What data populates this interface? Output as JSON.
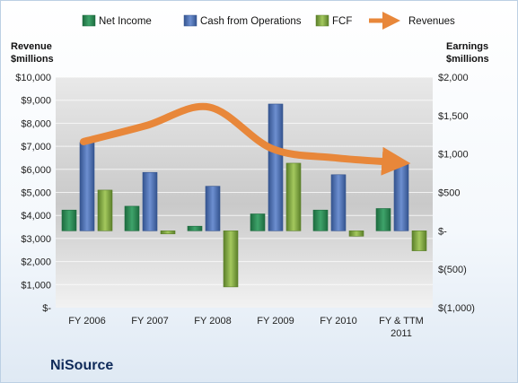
{
  "company": "NiSource",
  "chart_data": {
    "type": "bar",
    "categories": [
      "FY 2006",
      "FY 2007",
      "FY 2008",
      "FY 2009",
      "FY 2010",
      "FY & TTM 2011"
    ],
    "left_axis": {
      "title_line1": "Revenue",
      "title_line2": "$millions",
      "ylim": [
        0,
        10000
      ],
      "ticks": [
        0,
        1000,
        2000,
        3000,
        4000,
        5000,
        6000,
        7000,
        8000,
        9000,
        10000
      ],
      "tick_labels": [
        "$-",
        "$1,000",
        "$2,000",
        "$3,000",
        "$4,000",
        "$5,000",
        "$6,000",
        "$7,000",
        "$8,000",
        "$9,000",
        "$10,000"
      ]
    },
    "right_axis": {
      "title_line1": "Earnings",
      "title_line2": "$millions",
      "ylim": [
        -1000,
        2000
      ],
      "ticks": [
        -1000,
        -500,
        0,
        500,
        1000,
        1500,
        2000
      ],
      "tick_labels": [
        "$(1,000)",
        "$(500)",
        "$-",
        "$500",
        "$1,000",
        "$1,500",
        "$2,000"
      ]
    },
    "series": [
      {
        "name": "Net Income",
        "axis": "right",
        "color": "#2e8b57",
        "values": [
          270,
          320,
          60,
          220,
          270,
          290
        ]
      },
      {
        "name": "Cash from Operations",
        "axis": "right",
        "color": "#4a6fb5",
        "values": [
          1150,
          760,
          580,
          1650,
          730,
          870
        ]
      },
      {
        "name": "FCF",
        "axis": "right",
        "color": "#7faa3c",
        "values": [
          530,
          -40,
          -730,
          880,
          -70,
          -260
        ]
      },
      {
        "name": "Revenues",
        "axis": "left",
        "type": "line",
        "color": "#e8873a",
        "values": [
          7200,
          7900,
          8700,
          6900,
          6500,
          6300
        ]
      }
    ],
    "legend_position": "top",
    "grid": true
  }
}
